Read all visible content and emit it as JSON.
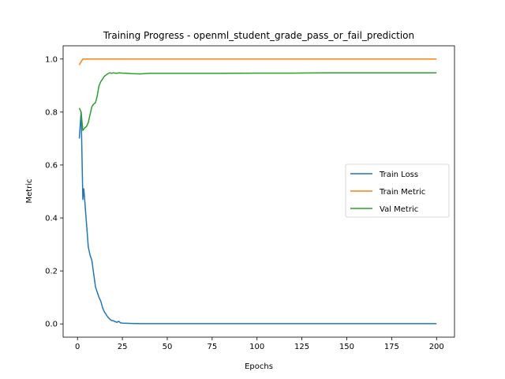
{
  "chart_data": {
    "type": "line",
    "title": "Training Progress - openml_student_grade_pass_or_fail_prediction",
    "xlabel": "Epochs",
    "ylabel": "Metric",
    "xlim": [
      -8,
      210
    ],
    "ylim": [
      -0.05,
      1.05
    ],
    "xticks": [
      0,
      25,
      50,
      75,
      100,
      125,
      150,
      175,
      200
    ],
    "yticks": [
      0.0,
      0.2,
      0.4,
      0.6,
      0.8,
      1.0
    ],
    "ytick_labels": [
      "0.0",
      "0.2",
      "0.4",
      "0.6",
      "0.8",
      "1.0"
    ],
    "grid": false,
    "legend_position": "center-right",
    "series": [
      {
        "name": "Train Loss",
        "color": "#1f77b4",
        "x": [
          1,
          2,
          3,
          3.5,
          4,
          5,
          6,
          7,
          8,
          9,
          10,
          11,
          12,
          13,
          14,
          15,
          16,
          17,
          18,
          19,
          20,
          21,
          22,
          23,
          24,
          25,
          30,
          35,
          40,
          50,
          100,
          150,
          200
        ],
        "y": [
          0.7,
          0.8,
          0.47,
          0.51,
          0.47,
          0.38,
          0.29,
          0.26,
          0.24,
          0.19,
          0.14,
          0.12,
          0.1,
          0.085,
          0.06,
          0.045,
          0.035,
          0.025,
          0.018,
          0.013,
          0.012,
          0.008,
          0.006,
          0.01,
          0.004,
          0.003,
          0.002,
          0.001,
          0.001,
          0.001,
          0.001,
          0.001,
          0.001
        ]
      },
      {
        "name": "Train Metric",
        "color": "#ff7f0e",
        "x": [
          1,
          2,
          3,
          5,
          10,
          50,
          100,
          150,
          200
        ],
        "y": [
          0.978,
          0.99,
          1.0,
          1.0,
          1.0,
          1.0,
          1.0,
          1.0,
          1.0
        ]
      },
      {
        "name": "Val Metric",
        "color": "#2ca02c",
        "x": [
          1,
          2,
          3,
          4,
          5,
          6,
          7,
          8,
          9,
          10,
          11,
          12,
          13,
          14,
          15,
          16,
          17,
          18,
          19,
          20,
          21,
          22,
          23,
          25,
          28,
          30,
          35,
          40,
          60,
          80,
          100,
          120,
          140,
          160,
          180,
          200
        ],
        "y": [
          0.815,
          0.8,
          0.73,
          0.74,
          0.745,
          0.76,
          0.79,
          0.82,
          0.83,
          0.835,
          0.86,
          0.9,
          0.915,
          0.925,
          0.935,
          0.94,
          0.945,
          0.948,
          0.946,
          0.948,
          0.947,
          0.946,
          0.948,
          0.947,
          0.946,
          0.945,
          0.944,
          0.946,
          0.946,
          0.946,
          0.947,
          0.947,
          0.948,
          0.948,
          0.948,
          0.948
        ]
      }
    ]
  }
}
